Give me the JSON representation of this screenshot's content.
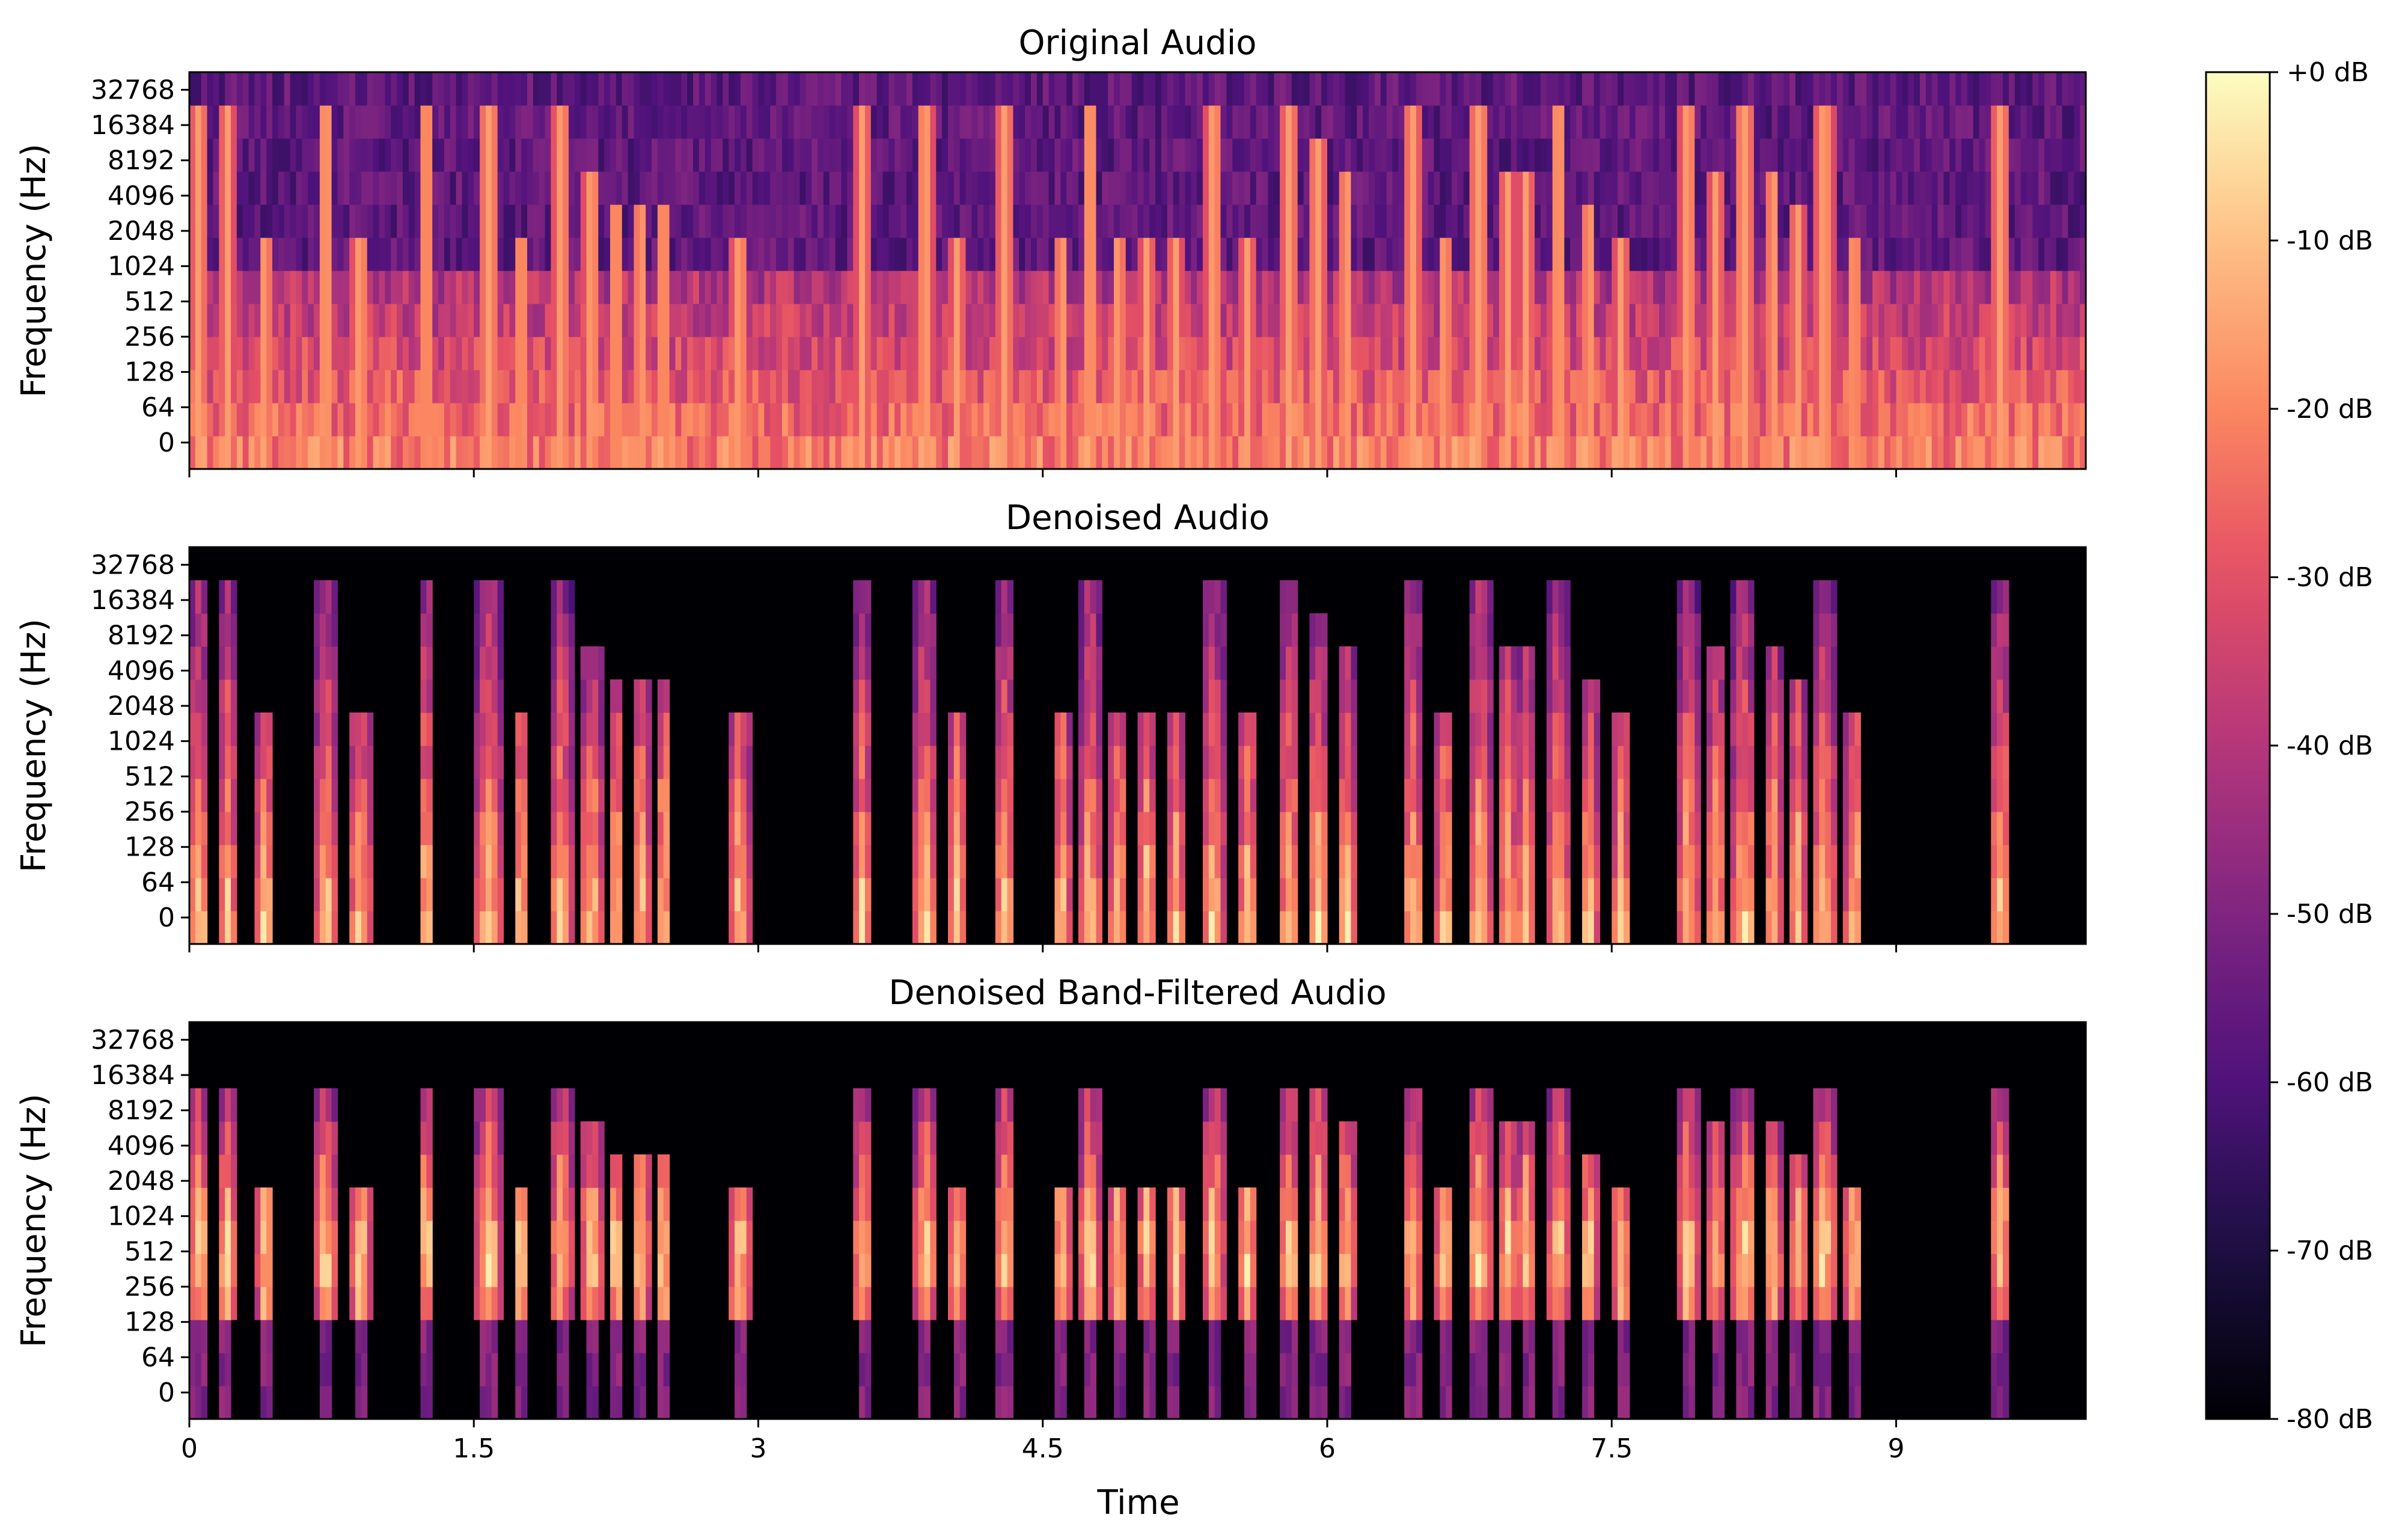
{
  "chart_data": {
    "type": "heatmap",
    "panels": [
      {
        "title": "Original Audio",
        "ylabel": "Frequency (Hz)",
        "yticks": [
          "0",
          "64",
          "128",
          "256",
          "512",
          "1024",
          "2048",
          "4096",
          "8192",
          "16384",
          "32768"
        ],
        "show_xticklabels": false,
        "mode": "original"
      },
      {
        "title": "Denoised Audio",
        "ylabel": "Frequency (Hz)",
        "yticks": [
          "0",
          "64",
          "128",
          "256",
          "512",
          "1024",
          "2048",
          "4096",
          "8192",
          "16384",
          "32768"
        ],
        "show_xticklabels": false,
        "mode": "denoised"
      },
      {
        "title": "Denoised Band-Filtered Audio",
        "ylabel": "Frequency (Hz)",
        "yticks": [
          "0",
          "64",
          "128",
          "256",
          "512",
          "1024",
          "2048",
          "4096",
          "8192",
          "16384",
          "32768"
        ],
        "show_xticklabels": true,
        "mode": "bandfiltered",
        "band_hz": [
          256,
          4096
        ]
      }
    ],
    "xlabel": "Time",
    "xticks": [
      "0",
      "1.5",
      "3",
      "4.5",
      "6",
      "7.5",
      "9"
    ],
    "xtick_values": [
      0,
      1.5,
      3,
      4.5,
      6,
      7.5,
      9
    ],
    "xlim": [
      0,
      10
    ],
    "colorbar": {
      "labels": [
        "+0 dB",
        "-10 dB",
        "-20 dB",
        "-30 dB",
        "-40 dB",
        "-50 dB",
        "-60 dB",
        "-70 dB",
        "-80 dB"
      ],
      "range_db": [
        -80,
        0
      ],
      "colormap": "magma"
    },
    "calls": [
      {
        "t": 0.05,
        "w": 0.06,
        "lo": 0,
        "hi": 12
      },
      {
        "t": 0.2,
        "w": 0.05,
        "lo": 0,
        "hi": 12
      },
      {
        "t": 0.4,
        "w": 0.05,
        "lo": 0,
        "hi": 8
      },
      {
        "t": 0.72,
        "w": 0.06,
        "lo": 0,
        "hi": 12.5
      },
      {
        "t": 0.9,
        "w": 0.06,
        "lo": 0,
        "hi": 8
      },
      {
        "t": 1.25,
        "w": 0.05,
        "lo": 0,
        "hi": 12
      },
      {
        "t": 1.58,
        "w": 0.07,
        "lo": 0,
        "hi": 12.5
      },
      {
        "t": 1.75,
        "w": 0.05,
        "lo": 0,
        "hi": 8
      },
      {
        "t": 1.96,
        "w": 0.06,
        "lo": 0,
        "hi": 12.5
      },
      {
        "t": 2.12,
        "w": 0.06,
        "lo": 0,
        "hi": 10
      },
      {
        "t": 2.25,
        "w": 0.05,
        "lo": 0,
        "hi": 9
      },
      {
        "t": 2.38,
        "w": 0.05,
        "lo": 0,
        "hi": 9
      },
      {
        "t": 2.5,
        "w": 0.05,
        "lo": 0,
        "hi": 9
      },
      {
        "t": 2.9,
        "w": 0.06,
        "lo": 0,
        "hi": 8
      },
      {
        "t": 3.55,
        "w": 0.05,
        "lo": 0,
        "hi": 12
      },
      {
        "t": 3.88,
        "w": 0.06,
        "lo": 0,
        "hi": 12.5
      },
      {
        "t": 4.05,
        "w": 0.05,
        "lo": 0,
        "hi": 8
      },
      {
        "t": 4.3,
        "w": 0.06,
        "lo": 0,
        "hi": 12
      },
      {
        "t": 4.6,
        "w": 0.05,
        "lo": 0,
        "hi": 8
      },
      {
        "t": 4.75,
        "w": 0.06,
        "lo": 0,
        "hi": 12.5
      },
      {
        "t": 4.9,
        "w": 0.05,
        "lo": 0,
        "hi": 8
      },
      {
        "t": 5.05,
        "w": 0.05,
        "lo": 0,
        "hi": 8
      },
      {
        "t": 5.2,
        "w": 0.05,
        "lo": 0,
        "hi": 8
      },
      {
        "t": 5.4,
        "w": 0.06,
        "lo": 0,
        "hi": 12
      },
      {
        "t": 5.58,
        "w": 0.05,
        "lo": 0,
        "hi": 8
      },
      {
        "t": 5.8,
        "w": 0.06,
        "lo": 0,
        "hi": 12
      },
      {
        "t": 5.95,
        "w": 0.06,
        "lo": 0,
        "hi": 11
      },
      {
        "t": 6.1,
        "w": 0.05,
        "lo": 0,
        "hi": 10
      },
      {
        "t": 6.45,
        "w": 0.06,
        "lo": 0,
        "hi": 12.5
      },
      {
        "t": 6.62,
        "w": 0.05,
        "lo": 0,
        "hi": 8
      },
      {
        "t": 6.8,
        "w": 0.07,
        "lo": 0,
        "hi": 12.5
      },
      {
        "t": 6.95,
        "w": 0.05,
        "lo": 0,
        "hi": 10
      },
      {
        "t": 7.05,
        "w": 0.05,
        "lo": 0,
        "hi": 10
      },
      {
        "t": 7.22,
        "w": 0.06,
        "lo": 0,
        "hi": 12.5
      },
      {
        "t": 7.38,
        "w": 0.05,
        "lo": 0,
        "hi": 9
      },
      {
        "t": 7.55,
        "w": 0.05,
        "lo": 0,
        "hi": 8
      },
      {
        "t": 7.9,
        "w": 0.06,
        "lo": 0,
        "hi": 12
      },
      {
        "t": 8.05,
        "w": 0.05,
        "lo": 0,
        "hi": 10
      },
      {
        "t": 8.2,
        "w": 0.07,
        "lo": 0,
        "hi": 12.5
      },
      {
        "t": 8.35,
        "w": 0.05,
        "lo": 0,
        "hi": 10
      },
      {
        "t": 8.48,
        "w": 0.05,
        "lo": 0,
        "hi": 9
      },
      {
        "t": 8.62,
        "w": 0.07,
        "lo": 0,
        "hi": 12.5
      },
      {
        "t": 8.78,
        "w": 0.05,
        "lo": 0,
        "hi": 8
      },
      {
        "t": 9.55,
        "w": 0.06,
        "lo": 0,
        "hi": 12
      }
    ]
  }
}
